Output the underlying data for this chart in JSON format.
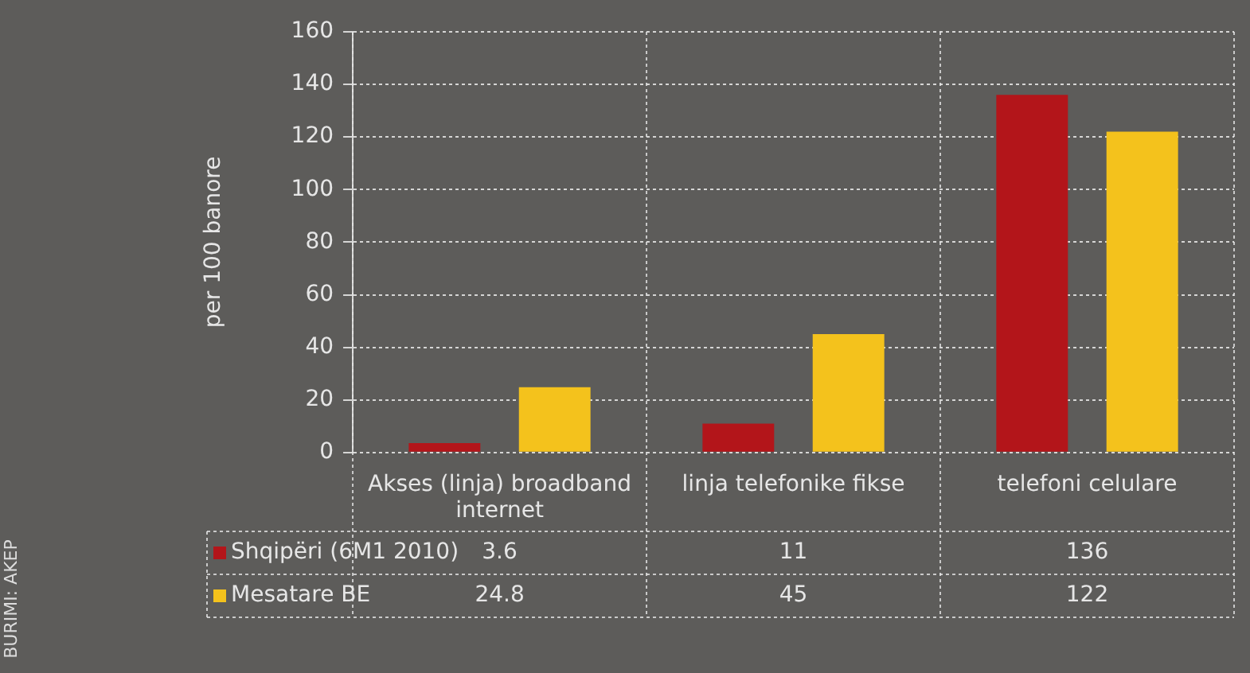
{
  "chart_data": {
    "type": "bar",
    "ylabel": "per 100 banore",
    "categories": [
      "Akses (linja) broadband internet",
      "linja telefonike fikse",
      "telefoni celulare"
    ],
    "series": [
      {
        "name": "Shqipëri (6M1 2010)",
        "color": "#b3151a",
        "values": [
          3.6,
          11,
          136
        ]
      },
      {
        "name": "Mesatare BE",
        "color": "#f4c21c",
        "values": [
          24.8,
          45,
          122
        ]
      }
    ],
    "ylim": [
      0,
      160
    ],
    "yticks": [
      0,
      20,
      40,
      60,
      80,
      100,
      120,
      140,
      160
    ],
    "grid": true,
    "legend": "bottom",
    "data_labels": true,
    "annotations": [
      "BURIMI: AKEP"
    ]
  }
}
